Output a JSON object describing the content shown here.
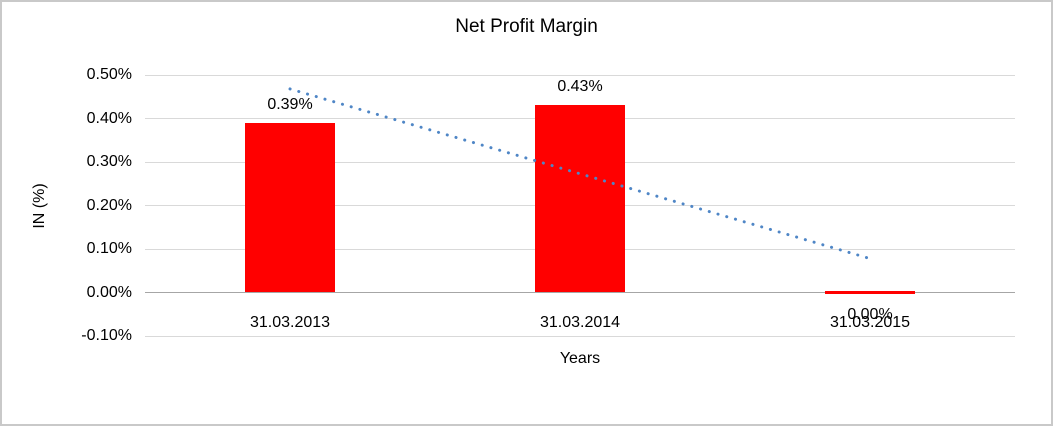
{
  "chart_data": {
    "type": "bar",
    "title": "Net Profit Margin",
    "xlabel": "Years",
    "ylabel": "IN (%)",
    "categories": [
      "31.03.2013",
      "31.03.2014",
      "31.03.2015"
    ],
    "values": [
      0.39,
      0.43,
      0.0
    ],
    "value_labels": [
      "0.39%",
      "0.43%",
      "0.00%"
    ],
    "y_ticks": [
      {
        "label": "0.50%",
        "value": 0.5
      },
      {
        "label": "0.40%",
        "value": 0.4
      },
      {
        "label": "0.30%",
        "value": 0.3
      },
      {
        "label": "0.20%",
        "value": 0.2
      },
      {
        "label": "0.10%",
        "value": 0.1
      },
      {
        "label": "0.00%",
        "value": 0.0
      },
      {
        "label": "-0.10%",
        "value": -0.1
      }
    ],
    "ylim": [
      -0.1,
      0.5
    ],
    "grid": true,
    "legend": false,
    "bar_color": "#FF0000",
    "gridline_color": "#D9D9D9",
    "axis_line_color": "#A6A6A6",
    "text_color": "#000000",
    "trendline": {
      "type": "linear",
      "style": "dotted",
      "color": "#4F86C6",
      "start_value": 0.468,
      "end_value": 0.078
    }
  }
}
